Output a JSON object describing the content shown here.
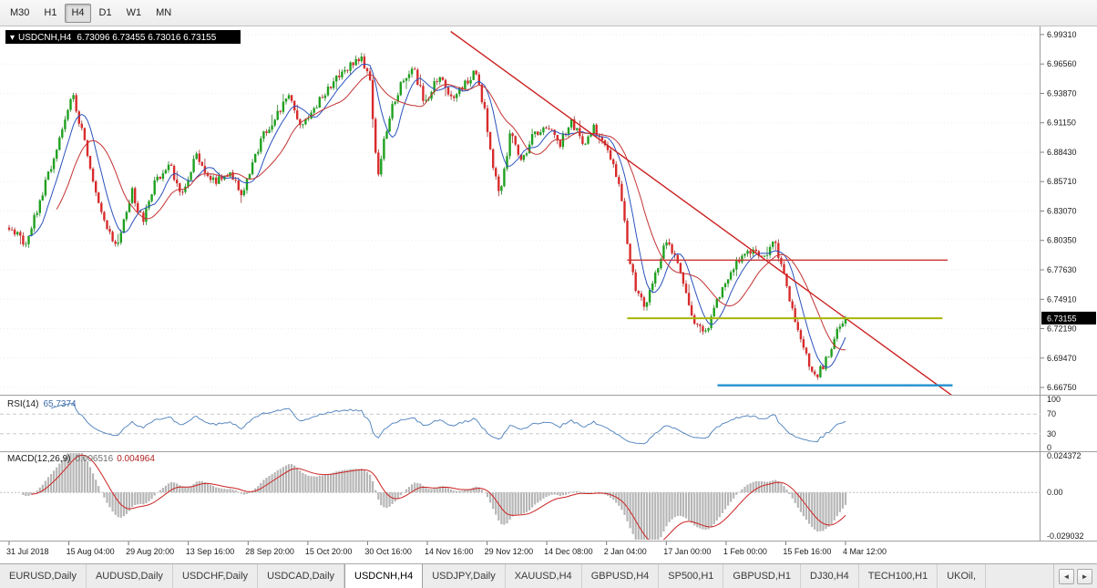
{
  "toolbar": {
    "timeframes": [
      {
        "label": "M30",
        "active": false
      },
      {
        "label": "H1",
        "active": false
      },
      {
        "label": "H4",
        "active": true
      },
      {
        "label": "D1",
        "active": false
      },
      {
        "label": "W1",
        "active": false
      },
      {
        "label": "MN",
        "active": false
      }
    ]
  },
  "chart": {
    "title_marker": "▾",
    "symbol_title": "USDCNH,H4",
    "ohlc_text": "6.73096 6.73455 6.73016 6.73155",
    "price_badge": "6.73155",
    "price_axis_labels": [
      "6.99310",
      "6.96560",
      "6.93870",
      "6.91150",
      "6.88430",
      "6.85710",
      "6.83070",
      "6.80350",
      "6.77630",
      "6.74910",
      "6.72190",
      "6.69470",
      "6.66750"
    ],
    "time_axis_labels": [
      "31 Jul 2018",
      "15 Aug 04:00",
      "29 Aug 20:00",
      "13 Sep 16:00",
      "28 Sep 20:00",
      "15 Oct 20:00",
      "30 Oct 16:00",
      "14 Nov 16:00",
      "29 Nov 12:00",
      "14 Dec 08:00",
      "2 Jan 04:00",
      "17 Jan 00:00",
      "1 Feb 00:00",
      "15 Feb 16:00",
      "4 Mar 12:00"
    ]
  },
  "chart_data": {
    "type": "candlestick",
    "symbol": "USDCNH",
    "timeframe": "H4",
    "bars": 300,
    "price_ylim": [
      6.6608,
      7.0006
    ],
    "current_price": 6.73155,
    "price_path": [
      [
        0.0,
        6.815
      ],
      [
        0.02,
        6.8
      ],
      [
        0.049,
        6.868
      ],
      [
        0.076,
        6.938
      ],
      [
        0.093,
        6.884
      ],
      [
        0.112,
        6.822
      ],
      [
        0.129,
        6.798
      ],
      [
        0.147,
        6.848
      ],
      [
        0.16,
        6.82
      ],
      [
        0.174,
        6.856
      ],
      [
        0.192,
        6.872
      ],
      [
        0.207,
        6.846
      ],
      [
        0.224,
        6.884
      ],
      [
        0.241,
        6.856
      ],
      [
        0.261,
        6.866
      ],
      [
        0.279,
        6.846
      ],
      [
        0.301,
        6.896
      ],
      [
        0.318,
        6.916
      ],
      [
        0.334,
        6.94
      ],
      [
        0.35,
        6.906
      ],
      [
        0.366,
        6.926
      ],
      [
        0.383,
        6.946
      ],
      [
        0.404,
        6.96
      ],
      [
        0.42,
        6.974
      ],
      [
        0.431,
        6.954
      ],
      [
        0.44,
        6.862
      ],
      [
        0.454,
        6.916
      ],
      [
        0.47,
        6.95
      ],
      [
        0.483,
        6.962
      ],
      [
        0.497,
        6.93
      ],
      [
        0.513,
        6.954
      ],
      [
        0.529,
        6.934
      ],
      [
        0.546,
        6.95
      ],
      [
        0.557,
        6.958
      ],
      [
        0.57,
        6.918
      ],
      [
        0.578,
        6.87
      ],
      [
        0.587,
        6.846
      ],
      [
        0.6,
        6.904
      ],
      [
        0.613,
        6.876
      ],
      [
        0.627,
        6.9
      ],
      [
        0.644,
        6.91
      ],
      [
        0.657,
        6.89
      ],
      [
        0.671,
        6.914
      ],
      [
        0.687,
        6.894
      ],
      [
        0.7,
        6.908
      ],
      [
        0.715,
        6.884
      ],
      [
        0.729,
        6.858
      ],
      [
        0.74,
        6.794
      ],
      [
        0.751,
        6.754
      ],
      [
        0.761,
        6.742
      ],
      [
        0.772,
        6.772
      ],
      [
        0.785,
        6.802
      ],
      [
        0.798,
        6.786
      ],
      [
        0.809,
        6.752
      ],
      [
        0.82,
        6.726
      ],
      [
        0.834,
        6.716
      ],
      [
        0.851,
        6.758
      ],
      [
        0.867,
        6.78
      ],
      [
        0.883,
        6.796
      ],
      [
        0.9,
        6.786
      ],
      [
        0.914,
        6.802
      ],
      [
        0.925,
        6.778
      ],
      [
        0.936,
        6.738
      ],
      [
        0.947,
        6.708
      ],
      [
        0.957,
        6.688
      ],
      [
        0.966,
        6.678
      ],
      [
        0.976,
        6.692
      ],
      [
        0.984,
        6.706
      ],
      [
        0.992,
        6.722
      ],
      [
        1.0,
        6.7315
      ]
    ],
    "overlays": {
      "trendline": {
        "name": "descending-trendline",
        "color": "#cc2222",
        "x1": 0.528,
        "price1": 6.996,
        "x2": 1.131,
        "price2": 6.658
      },
      "hlines": [
        {
          "name": "resistance-hline-red",
          "color": "#cc3333",
          "price": 6.785,
          "x1": 0.739,
          "x2": 1.122,
          "width": 1.3
        },
        {
          "name": "support-hline-yellow",
          "color": "#a8b400",
          "price": 6.7314,
          "x1": 0.739,
          "x2": 1.116,
          "width": 2
        },
        {
          "name": "support-hline-blue",
          "color": "#2090d0",
          "price": 6.6695,
          "x1": 0.847,
          "x2": 1.128,
          "width": 2.4
        }
      ]
    },
    "indicators": {
      "rsi": {
        "name": "RSI(14)",
        "value": "65.7374",
        "period": 14,
        "levels": [
          100,
          70,
          30,
          0
        ],
        "ylim": [
          0,
          100
        ]
      },
      "macd": {
        "name": "MACD(12,26,9)",
        "values": [
          "0.006516",
          "0.004964"
        ],
        "fast": 12,
        "slow": 26,
        "signal": 9,
        "ylim": [
          -0.029032,
          0.024372
        ],
        "axis_labels": [
          "0.024372",
          "0.00",
          "-0.029032"
        ]
      }
    }
  },
  "tabs": {
    "items": [
      {
        "label": "EURUSD,Daily",
        "active": false
      },
      {
        "label": "AUDUSD,Daily",
        "active": false
      },
      {
        "label": "USDCHF,Daily",
        "active": false
      },
      {
        "label": "USDCAD,Daily",
        "active": false
      },
      {
        "label": "USDCNH,H4",
        "active": true
      },
      {
        "label": "USDJPY,Daily",
        "active": false
      },
      {
        "label": "XAUUSD,H4",
        "active": false
      },
      {
        "label": "GBPUSD,H4",
        "active": false
      },
      {
        "label": "SP500,H1",
        "active": false
      },
      {
        "label": "GBPUSD,H1",
        "active": false
      },
      {
        "label": "DJ30,H4",
        "active": false
      },
      {
        "label": "TECH100,H1",
        "active": false
      },
      {
        "label": "UKOil,",
        "active": false
      }
    ],
    "nav": {
      "left": "◄",
      "right": "►"
    }
  },
  "colors": {
    "bull": "#1fa11f",
    "bull_stroke": "#0b6e0b",
    "bear": "#d92b2b",
    "bear_stroke": "#8f1414",
    "ma_fast": "#2a52be",
    "ma_slow": "#c43333",
    "rsi_line": "#4a7ebb",
    "macd_hist": "#b6b6b6",
    "macd_signal": "#cc2222",
    "grid": "#ededed",
    "axis_text": "#1a1a1a",
    "badge_bg": "#000000",
    "badge_text": "#ffffff"
  }
}
